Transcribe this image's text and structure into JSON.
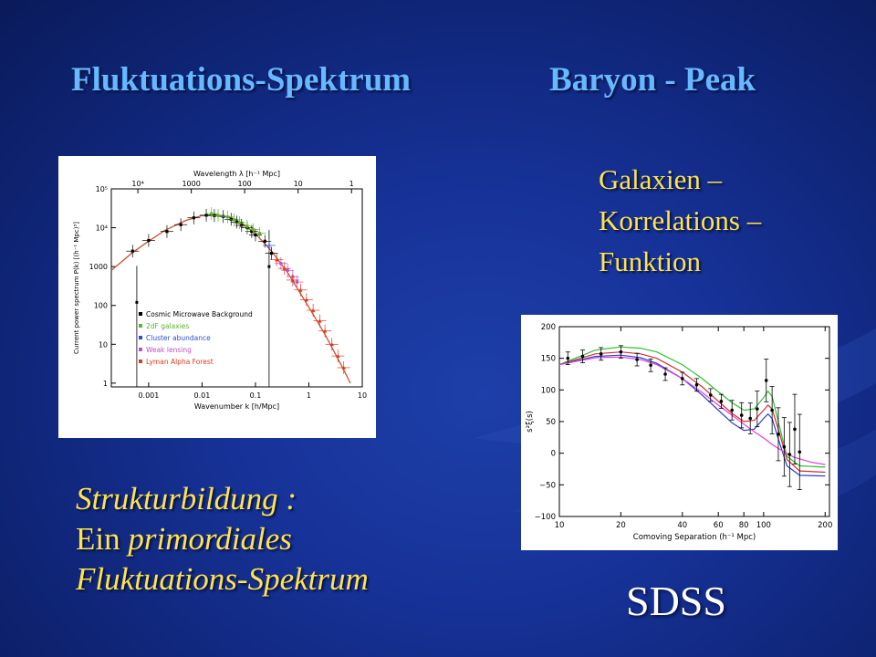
{
  "slide": {
    "title_left": "Fluktuations-Spektrum",
    "title_right": "Baryon - Peak",
    "galaxien_lines": [
      "Galaxien –",
      "Korrelations –",
      "Funktion"
    ],
    "struktur_line1": "Strukturbildung :",
    "struktur_line2_em": "Ein",
    "struktur_line2_rest": " primordiales",
    "struktur_line3": "Fluktuations-Spektrum",
    "sdss_label": "SDSS"
  },
  "colors": {
    "title": "#66b8ff",
    "yellow_text": "#ffe34d",
    "background": "#17339a"
  },
  "chart_data": [
    {
      "type": "scatter",
      "scale": "log-log",
      "top_axis_label": "Wavelength λ [h⁻¹ Mpc]",
      "top_ticks": [
        "10⁴",
        "1000",
        "100",
        "10",
        "1"
      ],
      "xlabel": "Wavenumber k [h/Mpc]",
      "ylabel": "Current power spectrum P(k) [(h⁻¹ Mpc)³]",
      "xlim": [
        0.0002,
        10
      ],
      "ylim": [
        0.8,
        100000
      ],
      "x_ticks": [
        "0.001",
        "0.01",
        "0.1",
        "1",
        "10"
      ],
      "y_ticks": [
        "1",
        "10",
        "100",
        "1000",
        "10⁴",
        "10⁵"
      ],
      "legend": [
        {
          "name": "Cosmic Microwave Background",
          "color": "#000000",
          "marker": "square"
        },
        {
          "name": "2dF galaxies",
          "color": "#5ab52a",
          "marker": "circle"
        },
        {
          "name": "Cluster abundance",
          "color": "#2a4fd0",
          "marker": "star"
        },
        {
          "name": "Weak lensing",
          "color": "#c04fc0",
          "marker": "square"
        },
        {
          "name": "Lyman Alpha Forest",
          "color": "#d83a1f",
          "marker": "triangle"
        }
      ],
      "legend_position": "bottom-left",
      "curve": {
        "color": "#d05030",
        "points": [
          [
            0.0002,
            800
          ],
          [
            0.0005,
            2300
          ],
          [
            0.001,
            4500
          ],
          [
            0.002,
            8500
          ],
          [
            0.005,
            15500
          ],
          [
            0.01,
            20500
          ],
          [
            0.02,
            21500
          ],
          [
            0.04,
            17000
          ],
          [
            0.07,
            10500
          ],
          [
            0.1,
            7000
          ],
          [
            0.2,
            2500
          ],
          [
            0.4,
            700
          ],
          [
            0.7,
            200
          ],
          [
            1,
            90
          ],
          [
            2,
            18
          ],
          [
            4,
            3
          ],
          [
            6,
            1
          ]
        ]
      },
      "series": [
        {
          "name": "Cosmic Microwave Background",
          "points": [
            [
              0.0005,
              2500
            ],
            [
              0.001,
              4700
            ],
            [
              0.0022,
              8000
            ],
            [
              0.004,
              12000
            ],
            [
              0.007,
              18000
            ],
            [
              0.012,
              21000
            ],
            [
              0.017,
              20500
            ],
            [
              0.025,
              19500
            ],
            [
              0.035,
              16500
            ],
            [
              0.045,
              14000
            ],
            [
              0.055,
              11500
            ],
            [
              0.07,
              10000
            ],
            [
              0.085,
              8000
            ],
            [
              0.1,
              6500
            ],
            [
              0.15,
              4500
            ],
            [
              0.2,
              2200
            ]
          ]
        },
        {
          "name": "2dF galaxies",
          "points": [
            [
              0.015,
              23000
            ],
            [
              0.02,
              20500
            ],
            [
              0.03,
              19000
            ],
            [
              0.04,
              16000
            ],
            [
              0.05,
              13500
            ],
            [
              0.07,
              11000
            ],
            [
              0.09,
              9000
            ],
            [
              0.12,
              7200
            ]
          ]
        },
        {
          "name": "Cluster abundance",
          "points": [
            [
              0.18,
              3500
            ]
          ]
        },
        {
          "name": "Weak lensing",
          "points": [
            [
              0.3,
              1200
            ],
            [
              0.4,
              800
            ],
            [
              0.5,
              550
            ],
            [
              0.6,
              400
            ]
          ]
        },
        {
          "name": "Lyman Alpha Forest",
          "points": [
            [
              0.25,
              1500
            ],
            [
              0.35,
              900
            ],
            [
              0.5,
              450
            ],
            [
              0.7,
              250
            ],
            [
              0.9,
              140
            ],
            [
              1.2,
              75
            ],
            [
              1.6,
              40
            ],
            [
              2,
              22
            ],
            [
              2.7,
              10
            ],
            [
              3.5,
              5
            ],
            [
              4.5,
              2.5
            ]
          ]
        }
      ]
    },
    {
      "type": "line",
      "xlabel": "Comoving Separation (h⁻¹ Mpc)",
      "ylabel": "s²ξ(s)",
      "x_scale": "log",
      "xlim": [
        10,
        210
      ],
      "ylim": [
        -100,
        200
      ],
      "x_ticks": [
        10,
        20,
        40,
        60,
        80,
        100,
        200
      ],
      "y_ticks": [
        -100,
        -50,
        0,
        50,
        100,
        150,
        200
      ],
      "series": [
        {
          "color": "#2ec02e",
          "points": [
            [
              10,
              140
            ],
            [
              15,
              163
            ],
            [
              20,
              168
            ],
            [
              25,
              166
            ],
            [
              30,
              160
            ],
            [
              40,
              140
            ],
            [
              50,
              118
            ],
            [
              60,
              97
            ],
            [
              70,
              80
            ],
            [
              80,
              68
            ],
            [
              90,
              70
            ],
            [
              100,
              88
            ],
            [
              105,
              98
            ],
            [
              110,
              90
            ],
            [
              120,
              40
            ],
            [
              130,
              -5
            ],
            [
              150,
              -20
            ],
            [
              200,
              -22
            ]
          ]
        },
        {
          "color": "#d03030",
          "points": [
            [
              10,
              140
            ],
            [
              15,
              157
            ],
            [
              20,
              160
            ],
            [
              25,
              157
            ],
            [
              30,
              150
            ],
            [
              40,
              128
            ],
            [
              50,
              105
            ],
            [
              60,
              82
            ],
            [
              70,
              63
            ],
            [
              80,
              50
            ],
            [
              90,
              52
            ],
            [
              100,
              68
            ],
            [
              105,
              76
            ],
            [
              110,
              70
            ],
            [
              120,
              30
            ],
            [
              130,
              -10
            ],
            [
              150,
              -28
            ],
            [
              200,
              -30
            ]
          ]
        },
        {
          "color": "#2a40d0",
          "points": [
            [
              10,
              140
            ],
            [
              15,
              153
            ],
            [
              20,
              155
            ],
            [
              25,
              151
            ],
            [
              30,
              142
            ],
            [
              40,
              118
            ],
            [
              50,
              92
            ],
            [
              60,
              68
            ],
            [
              70,
              48
            ],
            [
              80,
              36
            ],
            [
              90,
              38
            ],
            [
              100,
              55
            ],
            [
              105,
              62
            ],
            [
              110,
              55
            ],
            [
              120,
              15
            ],
            [
              130,
              -20
            ],
            [
              150,
              -35
            ],
            [
              200,
              -36
            ]
          ]
        },
        {
          "color": "#e040e0",
          "points": [
            [
              10,
              140
            ],
            [
              15,
              151
            ],
            [
              20,
              152
            ],
            [
              25,
              148
            ],
            [
              30,
              140
            ],
            [
              40,
              118
            ],
            [
              50,
              96
            ],
            [
              60,
              76
            ],
            [
              70,
              60
            ],
            [
              80,
              46
            ],
            [
              90,
              34
            ],
            [
              100,
              24
            ],
            [
              110,
              14
            ],
            [
              120,
              6
            ],
            [
              140,
              -6
            ],
            [
              170,
              -14
            ],
            [
              200,
              -18
            ]
          ]
        }
      ],
      "points_series": {
        "color": "#000000",
        "points": [
          [
            11,
            150
          ],
          [
            13,
            153
          ],
          [
            16,
            157
          ],
          [
            20,
            160
          ],
          [
            24,
            148
          ],
          [
            28,
            139
          ],
          [
            33,
            125
          ],
          [
            40,
            118
          ],
          [
            47,
            108
          ],
          [
            55,
            92
          ],
          [
            62,
            82
          ],
          [
            70,
            68
          ],
          [
            78,
            60
          ],
          [
            86,
            55
          ],
          [
            93,
            70
          ],
          [
            103,
            115
          ],
          [
            110,
            68
          ],
          [
            118,
            30
          ],
          [
            126,
            10
          ],
          [
            134,
            -2
          ],
          [
            142,
            38
          ],
          [
            150,
            2
          ]
        ]
      }
    }
  ]
}
